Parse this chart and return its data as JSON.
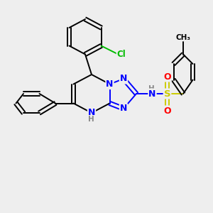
{
  "bg_color": "#eeeeee",
  "atom_colors": {
    "C": "#000000",
    "N": "#0000ff",
    "O": "#ff0000",
    "S": "#cccc00",
    "Cl": "#00bb00",
    "H": "#888888"
  },
  "figsize": [
    3.0,
    3.0
  ],
  "dpi": 100
}
